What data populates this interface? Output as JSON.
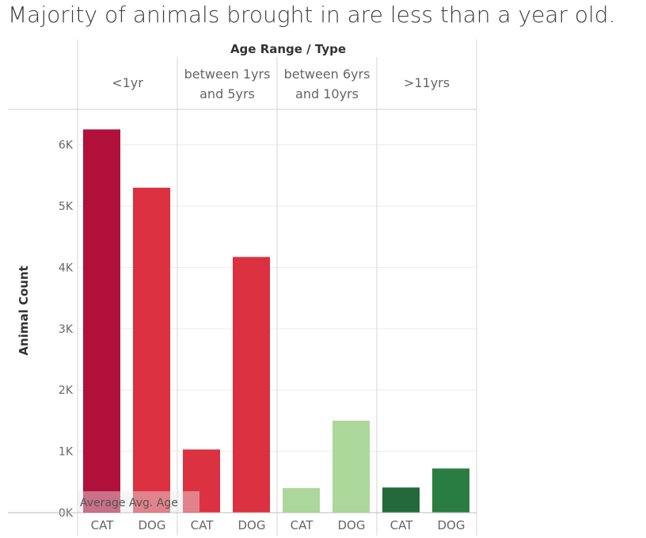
{
  "title": "Majority of animals brought in are less than a year old.",
  "chart_data": {
    "type": "bar",
    "header_title": "Age Range / Type",
    "ylabel": "Animal Count",
    "ylim": [
      0,
      6500
    ],
    "yticks": [
      0,
      1000,
      2000,
      3000,
      4000,
      5000,
      6000
    ],
    "ytick_labels": [
      "0K",
      "1K",
      "2K",
      "3K",
      "4K",
      "5K",
      "6K"
    ],
    "reference_label": "Average Avg. Age",
    "groups": [
      {
        "label_lines": [
          "<1yr"
        ],
        "bars": [
          {
            "category": "CAT",
            "value": 6250,
            "color": "#b0103a"
          },
          {
            "category": "DOG",
            "value": 5300,
            "color": "#dc3141"
          }
        ]
      },
      {
        "label_lines": [
          "between 1yrs",
          "and 5yrs"
        ],
        "bars": [
          {
            "category": "CAT",
            "value": 1030,
            "color": "#dc3141"
          },
          {
            "category": "DOG",
            "value": 4170,
            "color": "#dc3141"
          }
        ]
      },
      {
        "label_lines": [
          "between 6yrs",
          "and 10yrs"
        ],
        "bars": [
          {
            "category": "CAT",
            "value": 400,
            "color": "#acd79b"
          },
          {
            "category": "DOG",
            "value": 1500,
            "color": "#acd79b"
          }
        ]
      },
      {
        "label_lines": [
          ">11yrs"
        ],
        "bars": [
          {
            "category": "CAT",
            "value": 410,
            "color": "#236a3b"
          },
          {
            "category": "DOG",
            "value": 720,
            "color": "#2a7d42"
          }
        ]
      }
    ]
  }
}
